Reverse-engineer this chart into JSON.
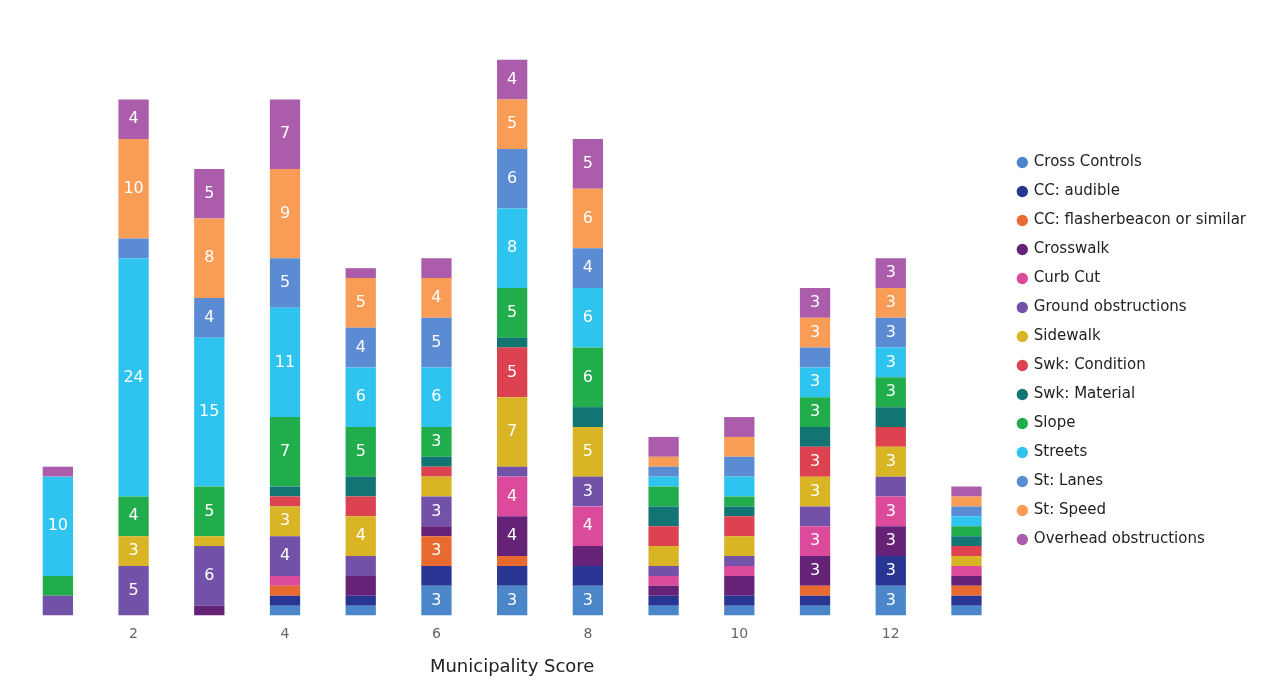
{
  "chart_data": {
    "type": "bar",
    "stacked": true,
    "xlabel": "Municipality Score",
    "categories": [
      null,
      "2",
      null,
      "4",
      null,
      "6",
      null,
      "8",
      null,
      "10",
      null,
      "12",
      null
    ],
    "tick_labels": "x",
    "legend": "right",
    "grid": false,
    "series": [
      {
        "name": "Cross Controls",
        "color": "#4a86c8",
        "values": [
          null,
          null,
          null,
          1,
          1,
          3,
          3,
          3,
          1,
          1,
          1,
          3,
          1
        ],
        "value_labels": [
          null,
          null,
          null,
          null,
          null,
          "3",
          "3",
          "3",
          null,
          null,
          null,
          "3",
          null
        ]
      },
      {
        "name": "CC: audible",
        "color": "#283593",
        "values": [
          null,
          null,
          null,
          1,
          1,
          2,
          2,
          2,
          1,
          1,
          1,
          3,
          1
        ],
        "value_labels": [
          null,
          null,
          null,
          null,
          null,
          null,
          null,
          null,
          null,
          null,
          null,
          "3",
          null
        ]
      },
      {
        "name": "CC: flasherbeacon or similar",
        "color": "#e86a30",
        "values": [
          null,
          null,
          null,
          1,
          null,
          3,
          1,
          null,
          null,
          null,
          1,
          null,
          1
        ],
        "value_labels": [
          null,
          null,
          null,
          null,
          null,
          "3",
          null,
          null,
          null,
          null,
          null,
          null,
          null
        ]
      },
      {
        "name": "Crosswalk",
        "color": "#662277",
        "values": [
          null,
          null,
          1,
          null,
          2,
          1,
          4,
          2,
          1,
          2,
          3,
          3,
          1
        ],
        "value_labels": [
          null,
          null,
          null,
          null,
          null,
          null,
          "4",
          null,
          null,
          null,
          "3",
          "3",
          null
        ]
      },
      {
        "name": "Curb Cut",
        "color": "#dc4a9c",
        "values": [
          null,
          null,
          null,
          1,
          null,
          null,
          4,
          4,
          1,
          1,
          3,
          3,
          1
        ],
        "value_labels": [
          null,
          null,
          null,
          null,
          null,
          null,
          "4",
          "4",
          null,
          null,
          "3",
          "3",
          null
        ]
      },
      {
        "name": "Ground obstructions",
        "color": "#7252a8",
        "values": [
          2,
          5,
          6,
          4,
          2,
          3,
          1,
          3,
          1,
          1,
          2,
          2,
          null
        ],
        "value_labels": [
          null,
          "5",
          "6",
          "4",
          null,
          "3",
          null,
          "3",
          null,
          null,
          null,
          null,
          null
        ]
      },
      {
        "name": "Sidewalk",
        "color": "#d9b424",
        "values": [
          null,
          3,
          1,
          3,
          4,
          2,
          7,
          5,
          2,
          2,
          3,
          3,
          1
        ],
        "value_labels": [
          null,
          "3",
          null,
          "3",
          "4",
          null,
          "7",
          "5",
          null,
          null,
          "3",
          "3",
          null
        ]
      },
      {
        "name": "Swk: Condition",
        "color": "#dc424f",
        "values": [
          null,
          null,
          null,
          1,
          2,
          1,
          5,
          null,
          2,
          2,
          3,
          2,
          1
        ],
        "value_labels": [
          null,
          null,
          null,
          null,
          null,
          null,
          "5",
          null,
          null,
          null,
          "3",
          null,
          null
        ]
      },
      {
        "name": "Swk: Material",
        "color": "#127473",
        "values": [
          null,
          null,
          null,
          1,
          2,
          1,
          1,
          2,
          2,
          1,
          2,
          2,
          1
        ],
        "value_labels": [
          null,
          null,
          null,
          null,
          null,
          null,
          null,
          null,
          null,
          null,
          null,
          null,
          null
        ]
      },
      {
        "name": "Slope",
        "color": "#22ad4c",
        "values": [
          2,
          4,
          5,
          7,
          5,
          3,
          5,
          6,
          2,
          1,
          3,
          3,
          1
        ],
        "value_labels": [
          null,
          "4",
          "5",
          "7",
          "5",
          "3",
          "5",
          "6",
          null,
          null,
          "3",
          "3",
          null
        ]
      },
      {
        "name": "Streets",
        "color": "#2ec4ef",
        "values": [
          10,
          24,
          15,
          11,
          6,
          6,
          8,
          6,
          1,
          2,
          3,
          3,
          1
        ],
        "value_labels": [
          "10",
          "24",
          "15",
          "11",
          "6",
          "6",
          "8",
          "6",
          null,
          null,
          "3",
          "3",
          null
        ]
      },
      {
        "name": "St: Lanes",
        "color": "#5b8bd2",
        "values": [
          null,
          2,
          4,
          5,
          4,
          5,
          6,
          4,
          1,
          2,
          2,
          3,
          1
        ],
        "value_labels": [
          null,
          null,
          "4",
          "5",
          "4",
          "5",
          "6",
          "4",
          null,
          null,
          null,
          "3",
          null
        ]
      },
      {
        "name": "St: Speed",
        "color": "#f89c56",
        "values": [
          null,
          10,
          8,
          9,
          5,
          4,
          5,
          6,
          1,
          2,
          3,
          3,
          1
        ],
        "value_labels": [
          null,
          "10",
          "8",
          "9",
          "5",
          "4",
          "5",
          "6",
          null,
          null,
          "3",
          "3",
          null
        ]
      },
      {
        "name": "Overhead obstructions",
        "color": "#ab5cab",
        "values": [
          1,
          4,
          5,
          7,
          1,
          2,
          4,
          5,
          2,
          2,
          3,
          3,
          1
        ],
        "value_labels": [
          null,
          "4",
          "5",
          "7",
          null,
          null,
          "4",
          "5",
          null,
          null,
          "3",
          "3",
          null
        ]
      }
    ]
  }
}
